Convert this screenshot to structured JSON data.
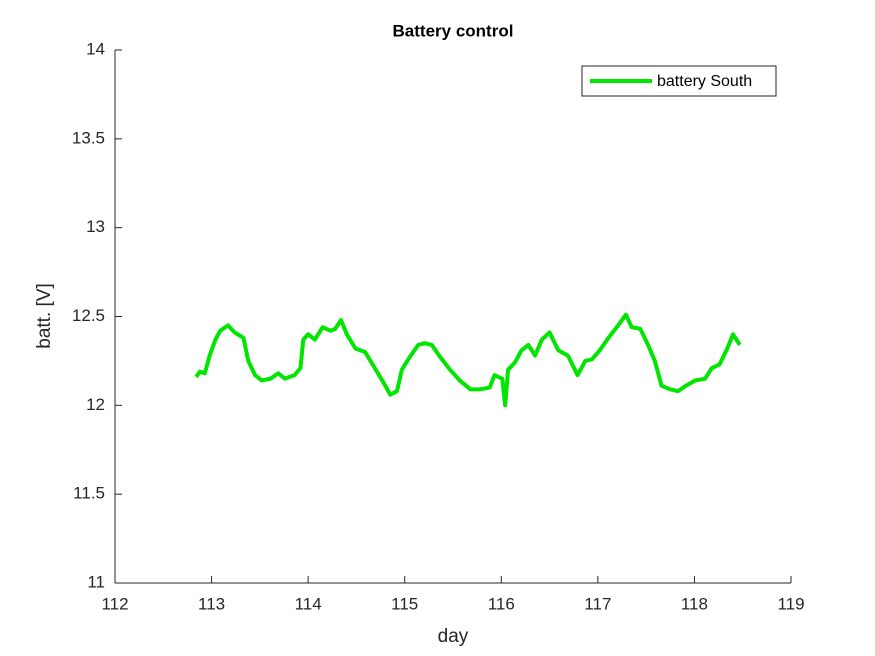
{
  "chart_data": {
    "type": "line",
    "title": "Battery control",
    "x_label": "day",
    "y_label": "batt. [V]",
    "xlim": [
      112,
      119
    ],
    "xticks": [
      112,
      113,
      114,
      115,
      116,
      117,
      118,
      119
    ],
    "ylim": [
      11,
      14
    ],
    "yticks": [
      11,
      11.5,
      12,
      12.5,
      13,
      13.5,
      14
    ],
    "grid": false,
    "legend_position": "northeast",
    "x": [
      112.84,
      112.88,
      112.93,
      112.98,
      113.04,
      113.09,
      113.17,
      113.24,
      113.33,
      113.38,
      113.45,
      113.52,
      113.61,
      113.69,
      113.76,
      113.86,
      113.92,
      113.95,
      114.0,
      114.07,
      114.15,
      114.23,
      114.28,
      114.34,
      114.4,
      114.49,
      114.59,
      114.69,
      114.8,
      114.85,
      114.92,
      114.97,
      115.05,
      115.14,
      115.21,
      115.28,
      115.37,
      115.47,
      115.57,
      115.68,
      115.78,
      115.88,
      115.93,
      116.01,
      116.04,
      116.07,
      116.14,
      116.21,
      116.28,
      116.35,
      116.42,
      116.5,
      116.59,
      116.69,
      116.79,
      116.87,
      116.94,
      117.02,
      117.11,
      117.21,
      117.29,
      117.35,
      117.44,
      117.52,
      117.59,
      117.66,
      117.75,
      117.83,
      117.91,
      118.01,
      118.11,
      118.18,
      118.26,
      118.34,
      118.4,
      118.47
    ],
    "series": [
      {
        "name": "battery South",
        "color": "#00e600",
        "values": [
          12.16,
          12.19,
          12.18,
          12.28,
          12.37,
          12.42,
          12.45,
          12.41,
          12.38,
          12.25,
          12.17,
          12.14,
          12.15,
          12.18,
          12.15,
          12.17,
          12.21,
          12.37,
          12.4,
          12.37,
          12.44,
          12.42,
          12.43,
          12.48,
          12.4,
          12.32,
          12.3,
          12.21,
          12.11,
          12.06,
          12.08,
          12.2,
          12.27,
          12.34,
          12.35,
          12.34,
          12.27,
          12.2,
          12.14,
          12.09,
          12.09,
          12.1,
          12.17,
          12.15,
          12.0,
          12.2,
          12.24,
          12.31,
          12.34,
          12.28,
          12.37,
          12.41,
          12.31,
          12.28,
          12.17,
          12.25,
          12.26,
          12.31,
          12.38,
          12.45,
          12.51,
          12.44,
          12.43,
          12.34,
          12.25,
          12.11,
          12.09,
          12.08,
          12.11,
          12.14,
          12.15,
          12.21,
          12.23,
          12.32,
          12.4,
          12.34
        ]
      }
    ]
  }
}
